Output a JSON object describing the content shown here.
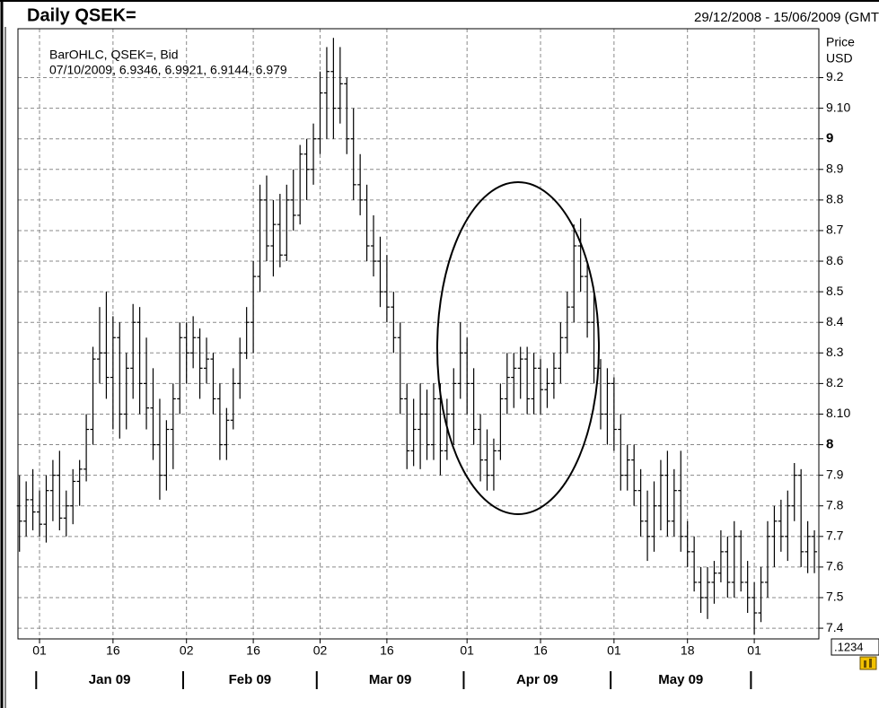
{
  "chart_data": {
    "type": "ohlc",
    "title": "Daily QSEK=",
    "date_range": "29/12/2008 - 15/06/2009 (GMT",
    "legend": [
      "BarOHLC, QSEK=, Bid",
      "07/10/2009, 6.9346, 6.9921, 6.9144, 6.979"
    ],
    "y_axis_label": "Price",
    "y_axis_unit": "USD",
    "precision_button": ".1234",
    "color": "#000000",
    "grid": true,
    "ylim": [
      7.365,
      9.36
    ],
    "yticks": [
      9.2,
      {
        "value": 9.1,
        "label": "9.10"
      },
      9,
      8.9,
      8.8,
      8.7,
      8.6,
      8.5,
      8.4,
      8.3,
      8.2,
      {
        "value": 8.1,
        "label": "8.10"
      },
      8,
      7.9,
      7.8,
      7.7,
      7.6,
      7.5,
      7.4
    ],
    "xticks": [
      {
        "value": "2009-01-01",
        "label": "01"
      },
      {
        "value": "2009-01-16",
        "label": "16"
      },
      {
        "value": "2009-02-02",
        "label": "02"
      },
      {
        "value": "2009-02-16",
        "label": "16"
      },
      {
        "value": "2009-03-02",
        "label": "02"
      },
      {
        "value": "2009-03-16",
        "label": "16"
      },
      {
        "value": "2009-04-01",
        "label": "01"
      },
      {
        "value": "2009-04-16",
        "label": "16"
      },
      {
        "value": "2009-05-01",
        "label": "01"
      },
      {
        "value": "2009-05-18",
        "label": "18"
      },
      {
        "value": "2009-06-01",
        "label": "01"
      }
    ],
    "month_ticks": [
      {
        "value": "2009-01",
        "label": "Jan 09"
      },
      {
        "value": "2009-02",
        "label": "Feb 09"
      },
      {
        "value": "2009-03",
        "label": "Mar 09"
      },
      {
        "value": "2009-04",
        "label": "Apr 09"
      },
      {
        "value": "2009-05",
        "label": "May 09"
      }
    ],
    "x": [
      "2008-12-29",
      "2008-12-30",
      "2008-12-31",
      "2009-01-01",
      "2009-01-02",
      "2009-01-05",
      "2009-01-06",
      "2009-01-07",
      "2009-01-08",
      "2009-01-09",
      "2009-01-12",
      "2009-01-13",
      "2009-01-14",
      "2009-01-15",
      "2009-01-16",
      "2009-01-19",
      "2009-01-20",
      "2009-01-21",
      "2009-01-22",
      "2009-01-23",
      "2009-01-26",
      "2009-01-27",
      "2009-01-28",
      "2009-01-29",
      "2009-01-30",
      "2009-02-02",
      "2009-02-03",
      "2009-02-04",
      "2009-02-05",
      "2009-02-06",
      "2009-02-09",
      "2009-02-10",
      "2009-02-11",
      "2009-02-12",
      "2009-02-13",
      "2009-02-16",
      "2009-02-17",
      "2009-02-18",
      "2009-02-19",
      "2009-02-20",
      "2009-02-23",
      "2009-02-24",
      "2009-02-25",
      "2009-02-26",
      "2009-02-27",
      "2009-03-02",
      "2009-03-03",
      "2009-03-04",
      "2009-03-05",
      "2009-03-06",
      "2009-03-09",
      "2009-03-10",
      "2009-03-11",
      "2009-03-12",
      "2009-03-13",
      "2009-03-16",
      "2009-03-17",
      "2009-03-18",
      "2009-03-19",
      "2009-03-20",
      "2009-03-23",
      "2009-03-24",
      "2009-03-25",
      "2009-03-26",
      "2009-03-27",
      "2009-03-30",
      "2009-03-31",
      "2009-04-01",
      "2009-04-02",
      "2009-04-03",
      "2009-04-06",
      "2009-04-07",
      "2009-04-08",
      "2009-04-09",
      "2009-04-10",
      "2009-04-13",
      "2009-04-14",
      "2009-04-15",
      "2009-04-16",
      "2009-04-17",
      "2009-04-20",
      "2009-04-21",
      "2009-04-22",
      "2009-04-23",
      "2009-04-24",
      "2009-04-27",
      "2009-04-28",
      "2009-04-29",
      "2009-04-30",
      "2009-05-01",
      "2009-05-04",
      "2009-05-05",
      "2009-05-06",
      "2009-05-07",
      "2009-05-08",
      "2009-05-11",
      "2009-05-12",
      "2009-05-13",
      "2009-05-14",
      "2009-05-15",
      "2009-05-18",
      "2009-05-19",
      "2009-05-20",
      "2009-05-21",
      "2009-05-22",
      "2009-05-25",
      "2009-05-26",
      "2009-05-27",
      "2009-05-28",
      "2009-05-29",
      "2009-06-01",
      "2009-06-02",
      "2009-06-03",
      "2009-06-04",
      "2009-06-05",
      "2009-06-08",
      "2009-06-09",
      "2009-06-10",
      "2009-06-11",
      "2009-06-12"
    ],
    "ohlc": [
      [
        7.8,
        7.9,
        7.65,
        7.75
      ],
      [
        7.75,
        7.88,
        7.7,
        7.82
      ],
      [
        7.82,
        7.92,
        7.72,
        7.78
      ],
      [
        7.78,
        7.85,
        7.7,
        7.74
      ],
      [
        7.74,
        7.9,
        7.68,
        7.85
      ],
      [
        7.85,
        7.95,
        7.75,
        7.9
      ],
      [
        7.9,
        7.98,
        7.72,
        7.76
      ],
      [
        7.76,
        7.85,
        7.7,
        7.8
      ],
      [
        7.8,
        7.92,
        7.74,
        7.88
      ],
      [
        7.88,
        7.95,
        7.8,
        7.92
      ],
      [
        7.92,
        8.1,
        7.88,
        8.05
      ],
      [
        8.05,
        8.32,
        8.0,
        8.28
      ],
      [
        8.28,
        8.45,
        8.2,
        8.3
      ],
      [
        8.3,
        8.5,
        8.15,
        8.22
      ],
      [
        8.22,
        8.42,
        8.05,
        8.35
      ],
      [
        8.35,
        8.4,
        8.02,
        8.1
      ],
      [
        8.1,
        8.3,
        8.05,
        8.25
      ],
      [
        8.25,
        8.46,
        8.15,
        8.4
      ],
      [
        8.4,
        8.45,
        8.1,
        8.2
      ],
      [
        8.2,
        8.35,
        8.05,
        8.12
      ],
      [
        8.12,
        8.25,
        7.95,
        8.0
      ],
      [
        8.0,
        8.15,
        7.82,
        7.9
      ],
      [
        7.9,
        8.08,
        7.85,
        8.05
      ],
      [
        8.05,
        8.2,
        7.92,
        8.15
      ],
      [
        8.15,
        8.4,
        8.1,
        8.35
      ],
      [
        8.35,
        8.4,
        8.2,
        8.3
      ],
      [
        8.3,
        8.42,
        8.25,
        8.35
      ],
      [
        8.35,
        8.38,
        8.15,
        8.25
      ],
      [
        8.25,
        8.35,
        8.2,
        8.28
      ],
      [
        8.28,
        8.3,
        8.1,
        8.15
      ],
      [
        8.15,
        8.2,
        7.95,
        8.0
      ],
      [
        8.0,
        8.12,
        7.95,
        8.08
      ],
      [
        8.08,
        8.25,
        8.05,
        8.2
      ],
      [
        8.2,
        8.35,
        8.15,
        8.3
      ],
      [
        8.3,
        8.45,
        8.28,
        8.4
      ],
      [
        8.4,
        8.6,
        8.3,
        8.55
      ],
      [
        8.55,
        8.85,
        8.5,
        8.8
      ],
      [
        8.8,
        8.88,
        8.6,
        8.65
      ],
      [
        8.65,
        8.8,
        8.55,
        8.72
      ],
      [
        8.72,
        8.82,
        8.58,
        8.62
      ],
      [
        8.62,
        8.85,
        8.6,
        8.8
      ],
      [
        8.8,
        8.9,
        8.7,
        8.75
      ],
      [
        8.75,
        8.98,
        8.72,
        8.95
      ],
      [
        8.95,
        9.0,
        8.8,
        8.9
      ],
      [
        8.9,
        9.05,
        8.85,
        9.0
      ],
      [
        9.0,
        9.22,
        8.95,
        9.15
      ],
      [
        9.15,
        9.3,
        9.0,
        9.22
      ],
      [
        9.22,
        9.33,
        9.0,
        9.1
      ],
      [
        9.1,
        9.3,
        9.05,
        9.18
      ],
      [
        9.18,
        9.2,
        8.95,
        9.0
      ],
      [
        9.0,
        9.1,
        8.8,
        8.85
      ],
      [
        8.85,
        8.95,
        8.75,
        8.8
      ],
      [
        8.8,
        8.85,
        8.6,
        8.65
      ],
      [
        8.65,
        8.75,
        8.55,
        8.6
      ],
      [
        8.6,
        8.68,
        8.45,
        8.5
      ],
      [
        8.5,
        8.62,
        8.4,
        8.45
      ],
      [
        8.45,
        8.5,
        8.3,
        8.35
      ],
      [
        8.35,
        8.4,
        8.1,
        8.15
      ],
      [
        8.15,
        8.2,
        7.92,
        7.98
      ],
      [
        7.98,
        8.15,
        7.93,
        8.05
      ],
      [
        8.05,
        8.2,
        7.92,
        8.1
      ],
      [
        8.1,
        8.18,
        7.95,
        8.0
      ],
      [
        8.0,
        8.2,
        7.95,
        8.15
      ],
      [
        8.15,
        8.2,
        7.9,
        7.98
      ],
      [
        7.98,
        8.15,
        7.95,
        8.1
      ],
      [
        8.1,
        8.25,
        8.0,
        8.2
      ],
      [
        8.2,
        8.4,
        8.15,
        8.3
      ],
      [
        8.3,
        8.35,
        8.1,
        8.2
      ],
      [
        8.2,
        8.25,
        8.0,
        8.05
      ],
      [
        8.05,
        8.1,
        7.88,
        7.95
      ],
      [
        7.95,
        8.05,
        7.85,
        7.9
      ],
      [
        7.9,
        8.02,
        7.85,
        7.98
      ],
      [
        7.98,
        8.2,
        7.95,
        8.15
      ],
      [
        8.15,
        8.3,
        8.1,
        8.22
      ],
      [
        8.22,
        8.3,
        8.12,
        8.25
      ],
      [
        8.25,
        8.32,
        8.15,
        8.28
      ],
      [
        8.28,
        8.32,
        8.1,
        8.15
      ],
      [
        8.15,
        8.3,
        8.1,
        8.25
      ],
      [
        8.25,
        8.28,
        8.1,
        8.18
      ],
      [
        8.18,
        8.25,
        8.12,
        8.2
      ],
      [
        8.2,
        8.3,
        8.15,
        8.25
      ],
      [
        8.25,
        8.4,
        8.2,
        8.35
      ],
      [
        8.35,
        8.5,
        8.3,
        8.45
      ],
      [
        8.45,
        8.72,
        8.4,
        8.65
      ],
      [
        8.65,
        8.74,
        8.5,
        8.55
      ],
      [
        8.55,
        8.6,
        8.35,
        8.4
      ],
      [
        8.4,
        8.5,
        8.2,
        8.25
      ],
      [
        8.25,
        8.28,
        8.05,
        8.1
      ],
      [
        8.1,
        8.25,
        8.0,
        8.2
      ],
      [
        8.2,
        8.22,
        7.98,
        8.05
      ],
      [
        8.05,
        8.1,
        7.85,
        7.9
      ],
      [
        7.9,
        8.0,
        7.85,
        7.95
      ],
      [
        7.95,
        8.0,
        7.8,
        7.85
      ],
      [
        7.85,
        7.92,
        7.7,
        7.75
      ],
      [
        7.75,
        7.85,
        7.62,
        7.7
      ],
      [
        7.7,
        7.88,
        7.65,
        7.8
      ],
      [
        7.8,
        7.95,
        7.72,
        7.9
      ],
      [
        7.9,
        7.98,
        7.7,
        7.75
      ],
      [
        7.75,
        7.92,
        7.7,
        7.85
      ],
      [
        7.85,
        7.98,
        7.65,
        7.7
      ],
      [
        7.7,
        7.75,
        7.6,
        7.65
      ],
      [
        7.65,
        7.7,
        7.52,
        7.55
      ],
      [
        7.55,
        7.6,
        7.45,
        7.5
      ],
      [
        7.5,
        7.6,
        7.43,
        7.55
      ],
      [
        7.55,
        7.62,
        7.48,
        7.58
      ],
      [
        7.58,
        7.72,
        7.55,
        7.65
      ],
      [
        7.65,
        7.7,
        7.5,
        7.55
      ],
      [
        7.55,
        7.75,
        7.5,
        7.7
      ],
      [
        7.7,
        7.72,
        7.52,
        7.55
      ],
      [
        7.55,
        7.62,
        7.45,
        7.5
      ],
      [
        7.5,
        7.55,
        7.38,
        7.45
      ],
      [
        7.45,
        7.6,
        7.42,
        7.55
      ],
      [
        7.55,
        7.75,
        7.5,
        7.7
      ],
      [
        7.7,
        7.8,
        7.6,
        7.75
      ],
      [
        7.75,
        7.82,
        7.65,
        7.7
      ],
      [
        7.7,
        7.85,
        7.62,
        7.8
      ],
      [
        7.8,
        7.94,
        7.75,
        7.9
      ],
      [
        7.9,
        7.92,
        7.6,
        7.65
      ],
      [
        7.65,
        7.75,
        7.58,
        7.7
      ],
      [
        7.7,
        7.72,
        7.58,
        7.65
      ]
    ]
  }
}
